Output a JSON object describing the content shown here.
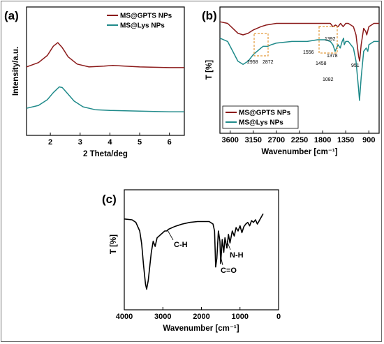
{
  "chart_data": [
    {
      "id": "a",
      "panel_label": "(a)",
      "type": "line",
      "xlabel": "2 Theta/deg",
      "ylabel": "Intensity/a.u.",
      "xlim": [
        1.2,
        6.5
      ],
      "xticks": [
        "2",
        "3",
        "4",
        "5",
        "6"
      ],
      "legend_position": "top-right",
      "series": [
        {
          "name": "MS@GPTS NPs",
          "color": "#8b1a1a",
          "x": [
            1.2,
            1.6,
            1.9,
            2.1,
            2.25,
            2.4,
            2.6,
            2.9,
            3.3,
            3.8,
            4.1,
            4.5,
            5.0,
            5.5,
            6.0,
            6.5
          ],
          "y": [
            0.66,
            0.72,
            0.82,
            0.95,
            1.0,
            0.93,
            0.8,
            0.7,
            0.66,
            0.67,
            0.68,
            0.67,
            0.66,
            0.655,
            0.65,
            0.65
          ]
        },
        {
          "name": "MS@Lys NPs",
          "color": "#1f8a8a",
          "x": [
            1.2,
            1.6,
            1.9,
            2.1,
            2.3,
            2.4,
            2.55,
            2.8,
            3.1,
            3.5,
            4.0,
            4.5,
            5.0,
            5.5,
            6.0,
            6.5
          ],
          "y": [
            0.08,
            0.12,
            0.2,
            0.3,
            0.38,
            0.37,
            0.3,
            0.18,
            0.1,
            0.06,
            0.05,
            0.045,
            0.04,
            0.035,
            0.03,
            0.03
          ]
        }
      ]
    },
    {
      "id": "b",
      "panel_label": "(b)",
      "type": "line",
      "xlabel": "Wavenumber [cm⁻¹]",
      "ylabel": "T [%]",
      "xlim": [
        3800,
        700
      ],
      "xticks": [
        "3600",
        "3150",
        "2700",
        "2250",
        "1800",
        "1350",
        "900"
      ],
      "legend_position": "bottom-left",
      "annotations": [
        "2958",
        "2872",
        "1556",
        "1392",
        "1458",
        "1378",
        "951",
        "1082"
      ],
      "series": [
        {
          "name": "MS@GPTS NPs",
          "color": "#8b1a1a",
          "x": [
            3800,
            3650,
            3550,
            3450,
            3350,
            3250,
            3150,
            3000,
            2900,
            2700,
            2400,
            2100,
            1900,
            1750,
            1650,
            1600,
            1550,
            1500,
            1450,
            1400,
            1350,
            1300,
            1250,
            1200,
            1150,
            1100,
            1080,
            1050,
            1000,
            960,
            940,
            900,
            850,
            800,
            750,
            700
          ],
          "y": [
            96,
            95,
            92,
            89,
            88,
            89,
            91,
            93,
            94,
            95,
            95,
            95,
            95,
            95,
            95,
            93,
            94,
            93,
            95,
            93,
            95,
            95,
            94,
            93,
            88,
            75,
            72,
            82,
            92,
            90,
            88,
            93,
            94,
            95,
            95,
            95
          ]
        },
        {
          "name": "MS@Lys NPs",
          "color": "#1f8a8a",
          "x": [
            3800,
            3650,
            3550,
            3450,
            3350,
            3250,
            3150,
            3000,
            2958,
            2900,
            2872,
            2800,
            2700,
            2400,
            2100,
            1900,
            1750,
            1650,
            1600,
            1556,
            1500,
            1458,
            1420,
            1392,
            1378,
            1350,
            1300,
            1250,
            1200,
            1150,
            1100,
            1082,
            1050,
            1000,
            951,
            920,
            900,
            850,
            800,
            750,
            700
          ],
          "y": [
            86,
            84,
            78,
            72,
            70,
            72,
            76,
            80,
            81,
            81,
            81,
            82,
            83,
            84,
            84,
            85,
            85,
            84,
            82,
            78,
            82,
            80,
            84,
            86,
            82,
            84,
            84,
            82,
            80,
            72,
            55,
            48,
            62,
            78,
            80,
            78,
            82,
            83,
            84,
            84,
            84
          ]
        }
      ]
    },
    {
      "id": "c",
      "panel_label": "(c)",
      "type": "line",
      "xlabel": "Wavenumber [cm⁻¹]",
      "ylabel": "T [%]",
      "xlim": [
        4000,
        0
      ],
      "xticks": [
        "4000",
        "3000",
        "2000",
        "1000",
        "0"
      ],
      "annotations": [
        "C-H",
        "N-H",
        "C=O"
      ],
      "series": [
        {
          "name": "",
          "color": "#000000",
          "x": [
            4000,
            3800,
            3700,
            3600,
            3550,
            3500,
            3450,
            3420,
            3380,
            3300,
            3250,
            3200,
            3150,
            3050,
            2950,
            2900,
            2850,
            2700,
            2500,
            2300,
            2100,
            1900,
            1800,
            1700,
            1660,
            1630,
            1600,
            1560,
            1520,
            1500,
            1460,
            1420,
            1390,
            1340,
            1300,
            1260,
            1200,
            1150,
            1100,
            1050,
            1000,
            950,
            900,
            850,
            800,
            750,
            700,
            650,
            600,
            550,
            500,
            450,
            400
          ],
          "y": [
            94,
            93,
            90,
            80,
            65,
            40,
            18,
            12,
            22,
            55,
            68,
            62,
            72,
            76,
            80,
            80,
            82,
            85,
            88,
            90,
            91,
            91,
            91,
            88,
            80,
            38,
            48,
            80,
            68,
            42,
            70,
            55,
            72,
            60,
            76,
            66,
            80,
            74,
            84,
            80,
            86,
            78,
            85,
            88,
            90,
            86,
            92,
            90,
            93,
            88,
            92,
            96,
            100
          ]
        }
      ]
    }
  ]
}
